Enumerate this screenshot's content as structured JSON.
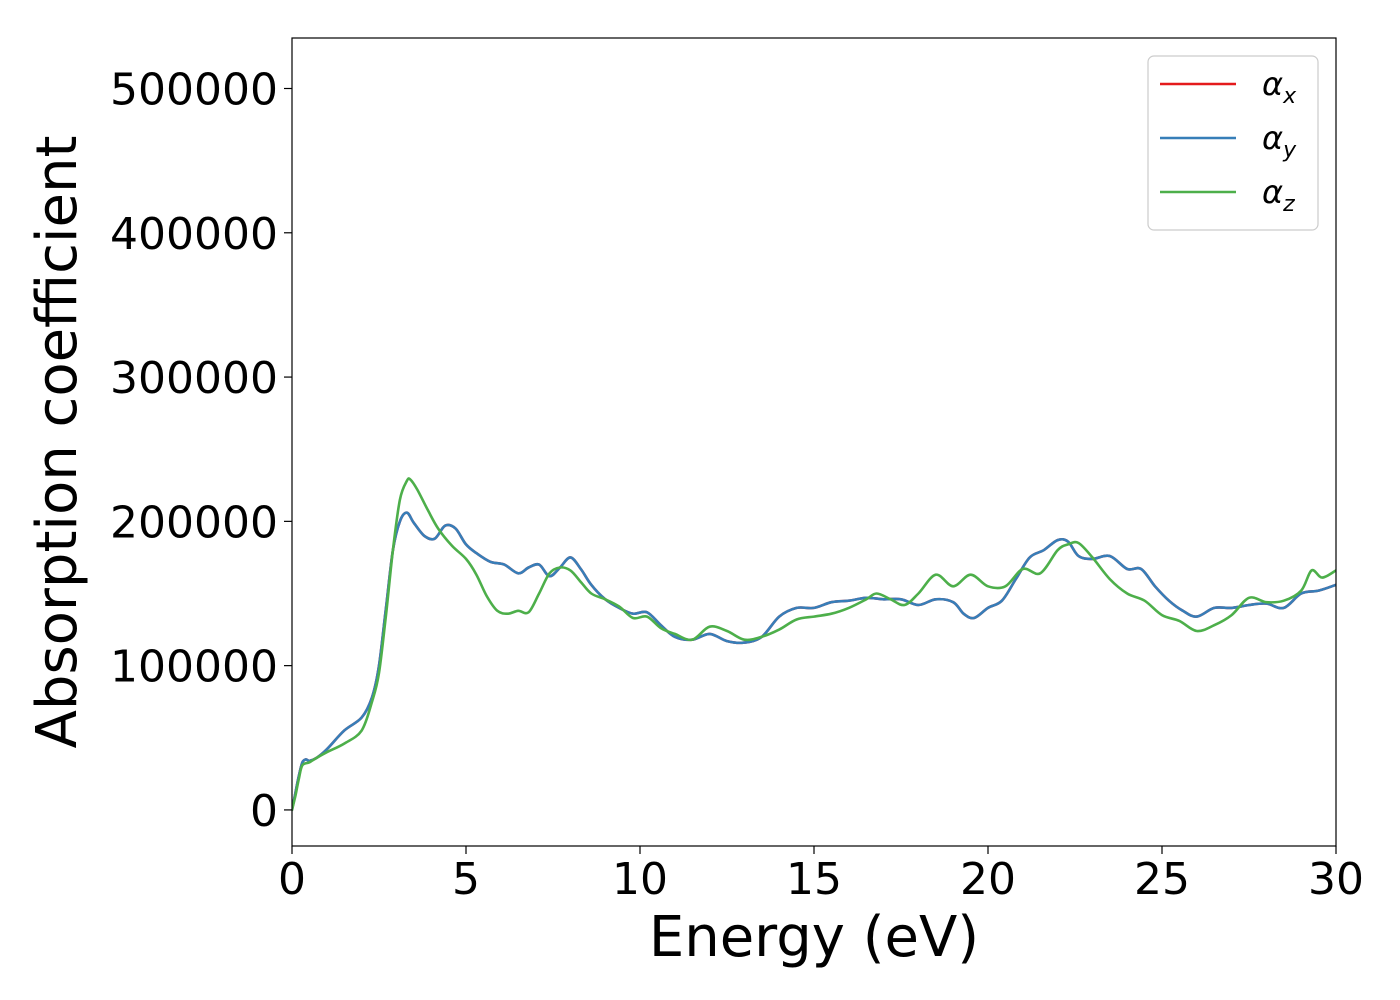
{
  "chart_data": {
    "type": "line",
    "title": "",
    "xlabel": "Energy (eV)",
    "ylabel": "Absorption coefficient",
    "xlim": [
      0,
      30
    ],
    "ylim": [
      -25000,
      535000
    ],
    "xticks": [
      0,
      5,
      10,
      15,
      20,
      25,
      30
    ],
    "xtick_labels": [
      "0",
      "5",
      "10",
      "15",
      "20",
      "25",
      "30"
    ],
    "yticks": [
      0,
      100000,
      200000,
      300000,
      400000,
      500000
    ],
    "ytick_labels": [
      "0",
      "100000",
      "200000",
      "300000",
      "400000",
      "500000"
    ],
    "grid": false,
    "legend_position": "top-right",
    "series": [
      {
        "name": "α_x",
        "legend_base": "α",
        "legend_sub": "x",
        "color": "#e41a1c",
        "x": [
          0,
          0.1,
          0.2,
          0.3,
          0.4,
          0.5,
          0.7,
          1.0,
          1.5,
          2.0,
          2.3,
          2.5,
          2.7,
          2.9,
          3.1,
          3.3,
          3.5,
          3.8,
          4.1,
          4.4,
          4.7,
          5.0,
          5.3,
          5.7,
          6.1,
          6.5,
          6.8,
          7.1,
          7.4,
          7.7,
          8.0,
          8.3,
          8.6,
          9.0,
          9.4,
          9.8,
          10.2,
          10.6,
          11.0,
          11.5,
          12.0,
          12.5,
          13.0,
          13.5,
          14.0,
          14.5,
          15.0,
          15.5,
          16.0,
          16.5,
          17.0,
          17.5,
          18.0,
          18.5,
          19.0,
          19.3,
          19.6,
          20.0,
          20.4,
          20.8,
          21.2,
          21.6,
          22.0,
          22.3,
          22.6,
          23.0,
          23.5,
          24.0,
          24.4,
          24.8,
          25.2,
          25.6,
          26.0,
          26.5,
          27.0,
          27.5,
          28.0,
          28.5,
          29.0,
          29.5,
          30.0
        ],
        "y": [
          0,
          12000,
          24000,
          33000,
          35000,
          34000,
          36000,
          42000,
          55000,
          64000,
          78000,
          100000,
          140000,
          180000,
          200000,
          206000,
          199000,
          190000,
          188000,
          197000,
          195000,
          184000,
          178000,
          172000,
          170000,
          164000,
          168000,
          170000,
          162000,
          168000,
          175000,
          167000,
          156000,
          146000,
          140000,
          136000,
          137000,
          128000,
          120000,
          118000,
          122000,
          117000,
          116000,
          120000,
          134000,
          140000,
          140000,
          144000,
          145000,
          147000,
          146000,
          146000,
          142000,
          146000,
          144000,
          136000,
          133000,
          140000,
          145000,
          160000,
          175000,
          180000,
          187000,
          186000,
          176000,
          174000,
          176000,
          167000,
          167000,
          155000,
          145000,
          138000,
          134000,
          140000,
          140000,
          142000,
          143000,
          140000,
          150000,
          152000,
          156000
        ]
      },
      {
        "name": "α_y",
        "legend_base": "α",
        "legend_sub": "y",
        "color": "#377eb8",
        "x": [
          0,
          0.1,
          0.2,
          0.3,
          0.4,
          0.5,
          0.7,
          1.0,
          1.5,
          2.0,
          2.3,
          2.5,
          2.7,
          2.9,
          3.1,
          3.3,
          3.5,
          3.8,
          4.1,
          4.4,
          4.7,
          5.0,
          5.3,
          5.7,
          6.1,
          6.5,
          6.8,
          7.1,
          7.4,
          7.7,
          8.0,
          8.3,
          8.6,
          9.0,
          9.4,
          9.8,
          10.2,
          10.6,
          11.0,
          11.5,
          12.0,
          12.5,
          13.0,
          13.5,
          14.0,
          14.5,
          15.0,
          15.5,
          16.0,
          16.5,
          17.0,
          17.5,
          18.0,
          18.5,
          19.0,
          19.3,
          19.6,
          20.0,
          20.4,
          20.8,
          21.2,
          21.6,
          22.0,
          22.3,
          22.6,
          23.0,
          23.5,
          24.0,
          24.4,
          24.8,
          25.2,
          25.6,
          26.0,
          26.5,
          27.0,
          27.5,
          28.0,
          28.5,
          29.0,
          29.5,
          30.0
        ],
        "y": [
          0,
          12000,
          24000,
          33000,
          35000,
          34000,
          36000,
          42000,
          55000,
          64000,
          78000,
          100000,
          140000,
          180000,
          200000,
          206000,
          199000,
          190000,
          188000,
          197000,
          195000,
          184000,
          178000,
          172000,
          170000,
          164000,
          168000,
          170000,
          162000,
          168000,
          175000,
          167000,
          156000,
          146000,
          140000,
          136000,
          137000,
          128000,
          120000,
          118000,
          122000,
          117000,
          116000,
          120000,
          134000,
          140000,
          140000,
          144000,
          145000,
          147000,
          146000,
          146000,
          142000,
          146000,
          144000,
          136000,
          133000,
          140000,
          145000,
          160000,
          175000,
          180000,
          187000,
          186000,
          176000,
          174000,
          176000,
          167000,
          167000,
          155000,
          145000,
          138000,
          134000,
          140000,
          140000,
          142000,
          143000,
          140000,
          150000,
          152000,
          156000
        ]
      },
      {
        "name": "α_z",
        "legend_base": "α",
        "legend_sub": "z",
        "color": "#4daf4a",
        "x": [
          0,
          0.1,
          0.2,
          0.3,
          0.5,
          0.7,
          1.0,
          1.5,
          2.0,
          2.3,
          2.5,
          2.7,
          2.9,
          3.1,
          3.3,
          3.4,
          3.6,
          3.9,
          4.2,
          4.6,
          5.0,
          5.3,
          5.6,
          5.9,
          6.2,
          6.5,
          6.8,
          7.1,
          7.4,
          7.7,
          8.0,
          8.3,
          8.6,
          9.0,
          9.4,
          9.8,
          10.2,
          10.6,
          11.0,
          11.5,
          12.0,
          12.5,
          13.0,
          13.5,
          14.0,
          14.5,
          15.0,
          15.5,
          16.0,
          16.5,
          16.8,
          17.2,
          17.6,
          18.0,
          18.5,
          19.0,
          19.5,
          20.0,
          20.5,
          21.0,
          21.5,
          22.0,
          22.3,
          22.6,
          23.0,
          23.5,
          24.0,
          24.5,
          25.0,
          25.5,
          26.0,
          26.5,
          27.0,
          27.5,
          28.0,
          28.5,
          29.0,
          29.3,
          29.6,
          30.0
        ],
        "y": [
          0,
          10000,
          22000,
          31000,
          33000,
          36000,
          40000,
          46000,
          55000,
          75000,
          95000,
          135000,
          180000,
          215000,
          228000,
          229000,
          222000,
          208000,
          195000,
          183000,
          174000,
          163000,
          148000,
          138000,
          136000,
          138000,
          137000,
          150000,
          164000,
          168000,
          166000,
          158000,
          150000,
          146000,
          141000,
          133000,
          134000,
          126000,
          122000,
          118000,
          127000,
          124000,
          118000,
          120000,
          125000,
          132000,
          134000,
          136000,
          140000,
          146000,
          150000,
          146000,
          142000,
          150000,
          163000,
          155000,
          163000,
          155000,
          155000,
          167000,
          164000,
          180000,
          184000,
          185000,
          175000,
          160000,
          150000,
          145000,
          135000,
          131000,
          124000,
          128000,
          135000,
          147000,
          144000,
          145000,
          152000,
          166000,
          161000,
          166000
        ]
      }
    ]
  }
}
